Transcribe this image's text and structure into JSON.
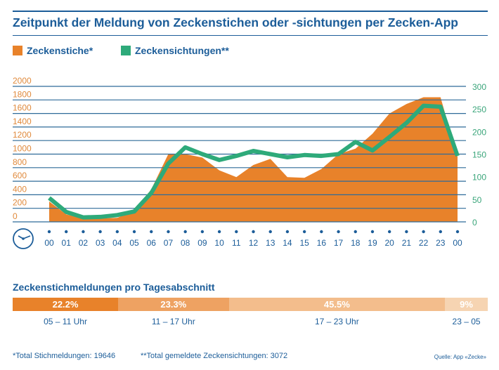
{
  "title": "Zeitpunkt der Meldung von Zeckenstichen oder -sichtungen per Zecken-App",
  "colors": {
    "orange": "#e8822a",
    "green": "#2eaa7a",
    "navy": "#1c5d99",
    "grid": "#2f6b99"
  },
  "chart_data": {
    "type": "area+line",
    "title": "Zeitpunkt der Meldung von Zeckenstichen oder -sichtungen per Zecken-App",
    "categories": [
      "00",
      "01",
      "02",
      "03",
      "04",
      "05",
      "06",
      "07",
      "08",
      "09",
      "10",
      "11",
      "12",
      "13",
      "14",
      "15",
      "16",
      "17",
      "18",
      "19",
      "20",
      "21",
      "22",
      "23",
      "00"
    ],
    "left_axis": {
      "ticks": [
        "0",
        "200",
        "400",
        "600",
        "800",
        "1000",
        "1200",
        "1400",
        "1600",
        "1800",
        "2000"
      ],
      "range": [
        0,
        2000
      ]
    },
    "right_axis": {
      "ticks": [
        "0",
        "50",
        "100",
        "150",
        "200",
        "250",
        "300"
      ],
      "range": [
        0,
        300
      ]
    },
    "grid": true,
    "legend_position": "top-left",
    "series": [
      {
        "name": "Zeckenstiche*",
        "type": "area",
        "axis": "left",
        "color": "#e8822a",
        "values": [
          300,
          110,
          50,
          50,
          60,
          165,
          480,
          1000,
          1000,
          950,
          760,
          660,
          840,
          930,
          660,
          650,
          780,
          1000,
          1080,
          1300,
          1600,
          1740,
          1840,
          1840,
          960
        ]
      },
      {
        "name": "Zeckensichtungen**",
        "type": "line",
        "axis": "right",
        "color": "#2eaa7a",
        "values": [
          53,
          22,
          10,
          11,
          15,
          23,
          64,
          129,
          165,
          150,
          137,
          146,
          157,
          150,
          143,
          148,
          146,
          150,
          177,
          158,
          188,
          219,
          257,
          255,
          146
        ]
      }
    ]
  },
  "breakdown": {
    "title": "Zeckenstichmeldungen pro Tagesabschnitt",
    "segments": [
      {
        "value": "22.2%",
        "label": "05 – 11 Uhr",
        "share": 22.2,
        "color": "#e8822a"
      },
      {
        "value": "23.3%",
        "label": "11 – 17 Uhr",
        "share": 23.3,
        "color": "#eea262"
      },
      {
        "value": "45.5%",
        "label": "17 – 23 Uhr",
        "share": 45.5,
        "color": "#f3bd8c"
      },
      {
        "value": "9%",
        "label": "23 – 05",
        "share": 9,
        "color": "#f6d4b2"
      }
    ]
  },
  "footnotes": {
    "total_stiche": "*Total Stichmeldungen: 19646",
    "total_sichtungen": "**Total gemeldete Zeckensichtungen: 3072",
    "source": "Quelle: App «Zecke»"
  }
}
